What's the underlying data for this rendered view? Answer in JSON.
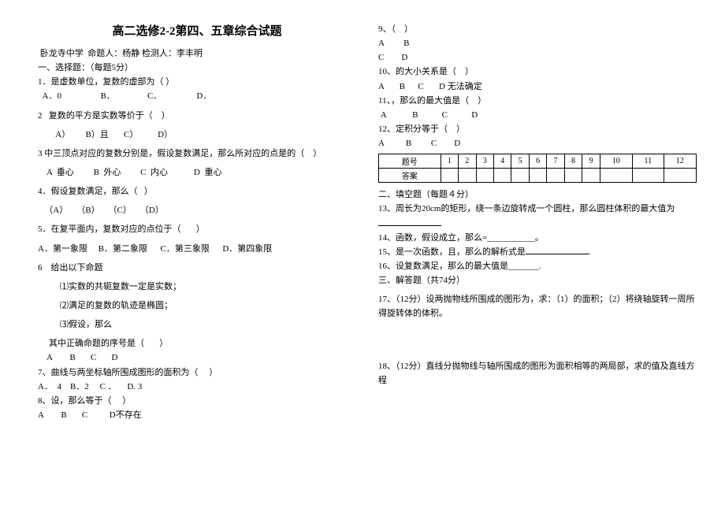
{
  "left": {
    "title": "高二选修2-2第四、五章综合试题",
    "school": " 卧龙寺中学  命题人：杨静 检测人：李丰明",
    "sec1": "一、选择题：（每题5分）",
    "q1": "1．是虚数单位，复数的虚部为（ ）",
    "q1opts": "  A．0                  B．               C．                D．",
    "q2": "2   复数的平方是实数等价于（    ）",
    "q2opts": "   A）       B）且       C）         D）",
    "q3": "3 中三顶点对应的复数分别是，假设复数满足，那么所对应的点是的（    ）",
    "q3opts": "    A  垂心         B  外心         C  内心            D  重心",
    "q4": "4．假设复数满足，那么（   ）",
    "q4opts": "   （A）    （B）    （C）    （D）",
    "q5": "5．在复平面内，复数对应的点位于（       ）",
    "q5opts": "A．第一象限     B．第二象限      C．第三象限      D．第四象限",
    "q6": "6    给出以下命题",
    "q6a": "⑴实数的共轭复数一定是实数；",
    "q6b": "⑵满足的复数的轨迹是椭圆；",
    "q6c": "⑶假设，那么",
    "q6d": "其中正确命题的序号是（       ）",
    "q6opts": "    A        B       C       D",
    "q7": "7、曲线与两坐标轴所围成图形的面积为（     ）",
    "q7opts": "A．  4    B．2     C ．     D. 3",
    "q8": "8、设，那么等于（     ）",
    "q8opts": "A        B       C          D不存在"
  },
  "right": {
    "q9": "9、（    ）",
    "q9a": "A         B",
    "q9b": "C        D",
    "q10": "10、的大小关系是（    ）",
    "q10opts": "A       B      C       D 无法确定",
    "q11": "11、，那么的最大值是（    ）",
    "q11opts": " A            B           C           D",
    "q12": "12、定积分等于（    ）",
    "q12opts": "A          B         C        D",
    "tbl_header": "题号",
    "tbl_nums": [
      "1",
      "2",
      "3",
      "4",
      "5",
      "6",
      "7",
      "8",
      "9",
      "10",
      "11",
      "12"
    ],
    "tbl_ans": "答案",
    "sec2": "二、填空题（每题４分）",
    "q13": "13、周长为20cm的矩形，绕一条边旋转成一个圆柱，那么圆柱体积的最大值为",
    "q14": "14、函数，假设成立，那么=___________。",
    "q15": "15、是一次函数，且，那么的解析式是",
    "q16": "16、设复数满足，那么的最大值是_______.",
    "sec3": "三、解答题（共74分）",
    "q17": "17、（12分）设两抛物线所围成的图形为，求：（1）的面积；（2）将绕轴旋转一周所得旋转体的体积。",
    "q18": "18、（12分）直线分抛物线与轴所围成的图形为面积相等的两局部，求的值及直线方程"
  },
  "style": {
    "background": "#ffffff",
    "text_color": "#000000",
    "title_fontsize": 15,
    "body_fontsize": 11
  }
}
